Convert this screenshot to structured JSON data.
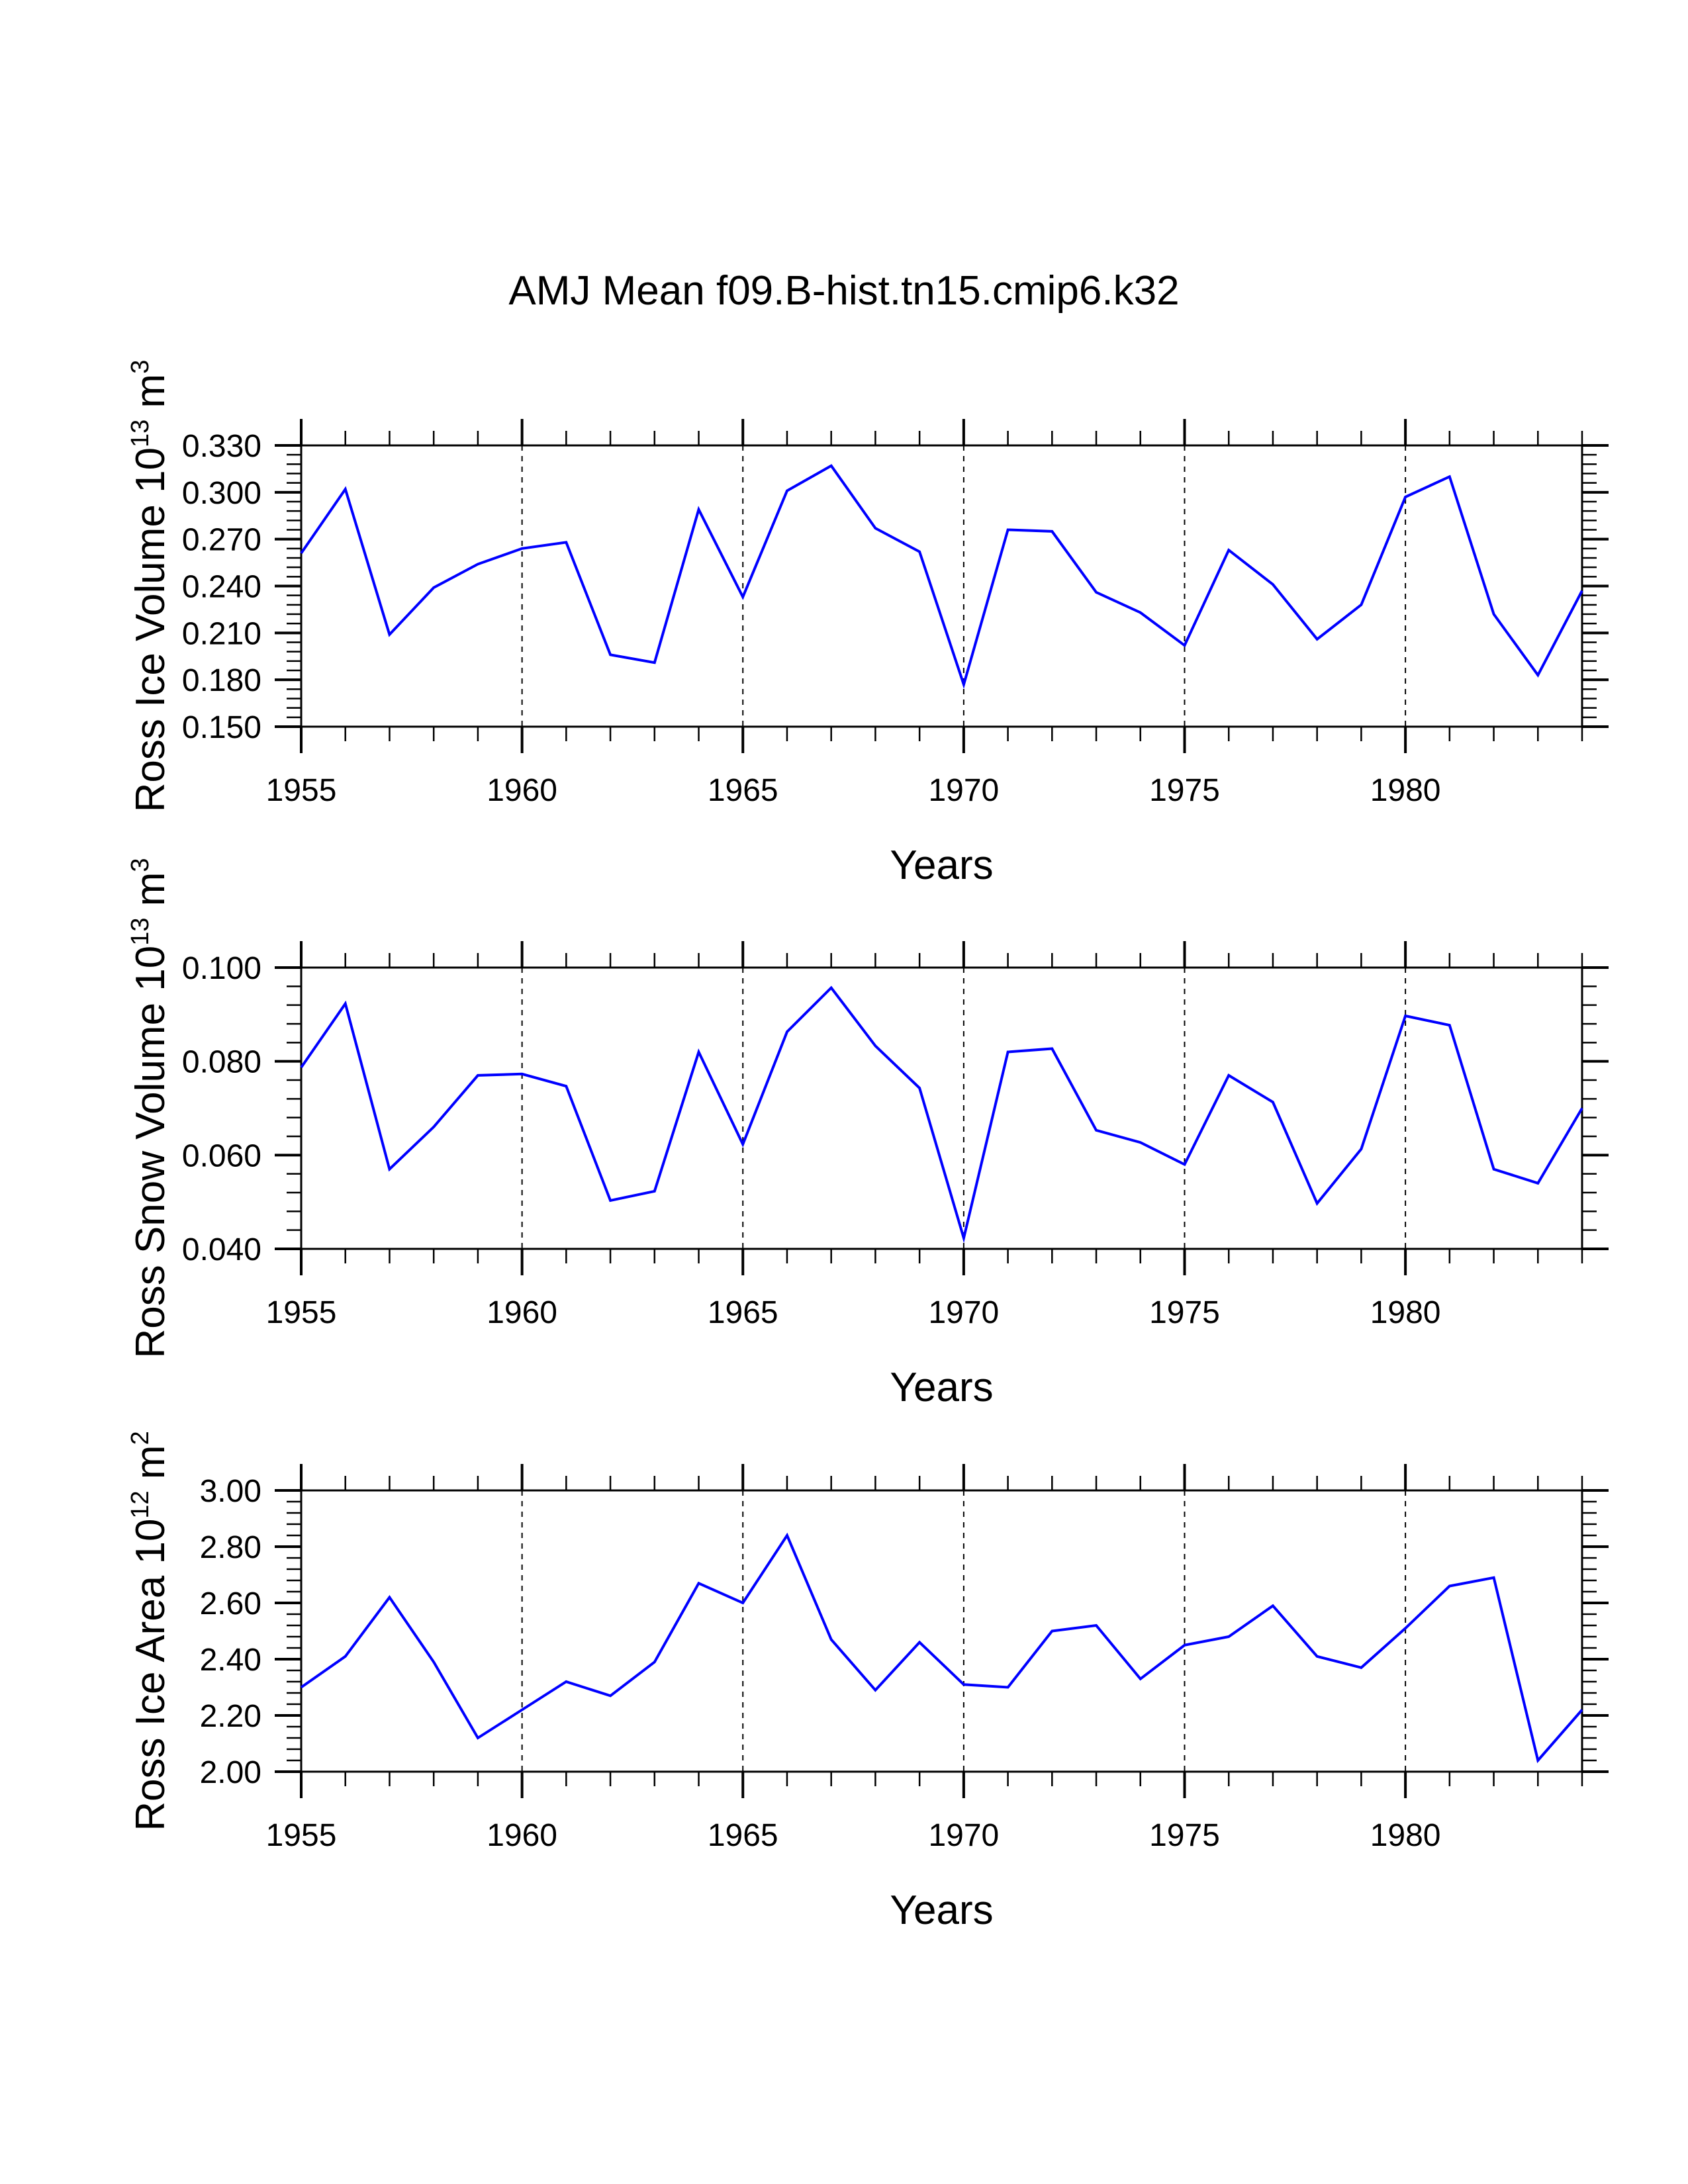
{
  "figure": {
    "title": "AMJ Mean f09.B-hist.tn15.cmip6.k32",
    "line_color": "#0000ff"
  },
  "chart_data": [
    {
      "type": "line",
      "title": "",
      "xlabel": "Years",
      "ylabel": {
        "main": "Ross Ice Volume 10",
        "exp": "13",
        "unit": " m",
        "unit_exp": "3"
      },
      "xlim": [
        1955,
        1984
      ],
      "ylim": [
        0.15,
        0.33
      ],
      "xticks": [
        "1955",
        "1960",
        "1965",
        "1970",
        "1975",
        "1980"
      ],
      "yticks": [
        "0.150",
        "0.180",
        "0.210",
        "0.240",
        "0.270",
        "0.300",
        "0.330"
      ],
      "x": [
        1955,
        1956,
        1957,
        1958,
        1959,
        1960,
        1961,
        1962,
        1963,
        1964,
        1965,
        1966,
        1967,
        1968,
        1969,
        1970,
        1971,
        1972,
        1973,
        1974,
        1975,
        1976,
        1977,
        1978,
        1979,
        1980,
        1981,
        1982,
        1983,
        1984
      ],
      "series": [
        {
          "name": "Ross Ice Volume",
          "values": [
            0.261,
            0.302,
            0.209,
            0.239,
            0.254,
            0.264,
            0.268,
            0.196,
            0.191,
            0.289,
            0.233,
            0.301,
            0.317,
            0.277,
            0.262,
            0.177,
            0.276,
            0.275,
            0.236,
            0.223,
            0.202,
            0.263,
            0.241,
            0.206,
            0.228,
            0.297,
            0.31,
            0.222,
            0.183,
            0.237
          ]
        }
      ],
      "grid": "vertical dashed at major x ticks"
    },
    {
      "type": "line",
      "title": "",
      "xlabel": "Years",
      "ylabel": {
        "main": "Ross Snow Volume 10",
        "exp": "13",
        "unit": " m",
        "unit_exp": "3"
      },
      "xlim": [
        1955,
        1984
      ],
      "ylim": [
        0.04,
        0.1
      ],
      "xticks": [
        "1955",
        "1960",
        "1965",
        "1970",
        "1975",
        "1980"
      ],
      "yticks": [
        "0.040",
        "0.060",
        "0.080",
        "0.100"
      ],
      "x": [
        1955,
        1956,
        1957,
        1958,
        1959,
        1960,
        1961,
        1962,
        1963,
        1964,
        1965,
        1966,
        1967,
        1968,
        1969,
        1970,
        1971,
        1972,
        1973,
        1974,
        1975,
        1976,
        1977,
        1978,
        1979,
        1980,
        1981,
        1982,
        1983,
        1984
      ],
      "series": [
        {
          "name": "Ross Snow Volume",
          "values": [
            0.0787,
            0.0923,
            0.057,
            0.066,
            0.077,
            0.0773,
            0.0747,
            0.0503,
            0.0523,
            0.082,
            0.0623,
            0.0863,
            0.0957,
            0.0833,
            0.0743,
            0.0423,
            0.082,
            0.0827,
            0.0653,
            0.0627,
            0.058,
            0.077,
            0.0713,
            0.0497,
            0.0613,
            0.0897,
            0.0877,
            0.057,
            0.054,
            0.07
          ]
        }
      ],
      "grid": "vertical dashed at major x ticks"
    },
    {
      "type": "line",
      "title": "",
      "xlabel": "Years",
      "ylabel": {
        "main": "Ross Ice Area 10",
        "exp": "12",
        "unit": " m",
        "unit_exp": "2"
      },
      "xlim": [
        1955,
        1984
      ],
      "ylim": [
        2.0,
        3.0
      ],
      "xticks": [
        "1955",
        "1960",
        "1965",
        "1970",
        "1975",
        "1980"
      ],
      "yticks": [
        "2.00",
        "2.20",
        "2.40",
        "2.60",
        "2.80",
        "3.00"
      ],
      "x": [
        1955,
        1956,
        1957,
        1958,
        1959,
        1960,
        1961,
        1962,
        1963,
        1964,
        1965,
        1966,
        1967,
        1968,
        1969,
        1970,
        1971,
        1972,
        1973,
        1974,
        1975,
        1976,
        1977,
        1978,
        1979,
        1980,
        1981,
        1982,
        1983,
        1984
      ],
      "series": [
        {
          "name": "Ross Ice Area",
          "values": [
            2.3,
            2.41,
            2.62,
            2.39,
            2.12,
            2.22,
            2.32,
            2.27,
            2.39,
            2.67,
            2.6,
            2.84,
            2.47,
            2.29,
            2.46,
            2.31,
            2.3,
            2.5,
            2.52,
            2.33,
            2.45,
            2.48,
            2.59,
            2.41,
            2.37,
            2.51,
            2.66,
            2.69,
            2.04,
            2.22
          ]
        }
      ],
      "grid": "vertical dashed at major x ticks"
    }
  ]
}
